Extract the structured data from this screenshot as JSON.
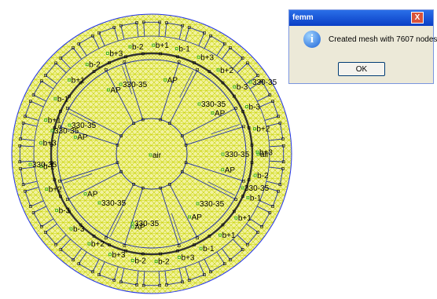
{
  "colors": {
    "mesh": "#c8d400",
    "mesh_fill": "#f2f2a0",
    "outline": "#2233aa",
    "outer_circle": "#2233ee",
    "node": "#000000",
    "label_marker": "#22aa22"
  },
  "drawing": {
    "outer_labels": [
      "b-2",
      "b+1",
      "b-1",
      "b+3",
      "b+2",
      "b-3",
      "b-3",
      "b+2",
      "b+3",
      "b-2",
      "b-1",
      "b+1",
      "b+1",
      "b-1",
      "b+3",
      "b-2",
      "b-2",
      "b+3",
      "b+2",
      "b-3",
      "b-3",
      "b+2",
      "b-1",
      "b+3",
      "b+1",
      "b-1",
      "b+1",
      "b-2",
      "b+3"
    ],
    "ap_labels": [
      "AP",
      "AP",
      "AP",
      "AP",
      "AP",
      "AP",
      "AP",
      "AP"
    ],
    "steel_labels": [
      "330-35",
      "330-35",
      "330-35",
      "330-35",
      "330-35",
      "330-35",
      "330-35",
      "330-35",
      "330-35",
      "330-35",
      "330-35"
    ],
    "air_labels": [
      "air",
      "air"
    ]
  },
  "dialog": {
    "title": "femm",
    "close_glyph": "X",
    "icon_glyph": "i",
    "message": "Created mesh with 7607 nodes",
    "ok_label": "OK"
  }
}
